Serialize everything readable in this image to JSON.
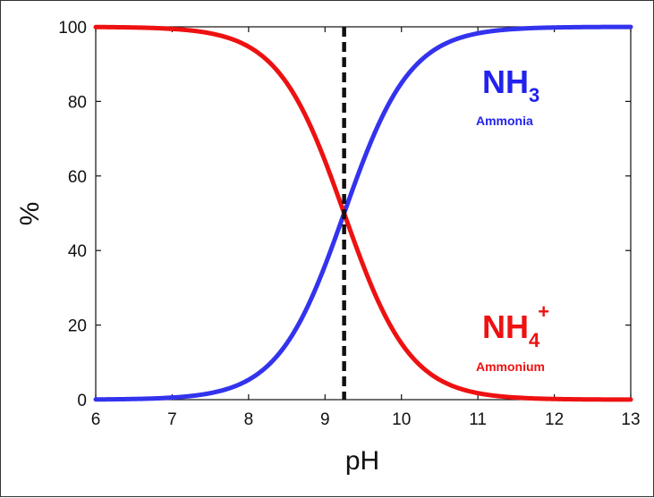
{
  "chart_data": {
    "type": "line",
    "xlabel": "pH",
    "ylabel": "%",
    "xlim": [
      6,
      13
    ],
    "ylim": [
      0,
      100
    ],
    "x_ticks": [
      "6",
      "7",
      "8",
      "9",
      "10",
      "11",
      "12",
      "13"
    ],
    "y_ticks": [
      "0",
      "20",
      "40",
      "60",
      "80",
      "100"
    ],
    "pKa": 9.25,
    "grid": false,
    "series": [
      {
        "color": "#3333ee",
        "x": [
          6.0,
          6.5,
          7.0,
          7.5,
          8.0,
          8.5,
          9.0,
          9.25,
          9.5,
          10.0,
          10.5,
          11.0,
          11.5,
          12.0,
          12.5,
          13.0
        ],
        "y": [
          0.1,
          0.2,
          0.6,
          1.7,
          5.3,
          15.1,
          36.0,
          50.0,
          64.0,
          84.9,
          94.7,
          98.3,
          99.4,
          99.8,
          99.9,
          100.0
        ]
      },
      {
        "color": "#ee1111",
        "x": [
          6.0,
          6.5,
          7.0,
          7.5,
          8.0,
          8.5,
          9.0,
          9.25,
          9.5,
          10.0,
          10.5,
          11.0,
          11.5,
          12.0,
          12.5,
          13.0
        ],
        "y": [
          99.9,
          99.8,
          99.4,
          98.3,
          94.7,
          84.9,
          64.0,
          50.0,
          36.0,
          15.1,
          5.3,
          1.7,
          0.6,
          0.2,
          0.1,
          0.0
        ]
      }
    ],
    "annotations": {
      "nh3": {
        "formula": "NH",
        "sub": "3",
        "name": "Ammonia",
        "color": "#2222ee"
      },
      "nh4": {
        "formula": "NH",
        "sub": "4",
        "sup": "+",
        "name": "Ammonium",
        "color": "#ee1111"
      }
    }
  }
}
